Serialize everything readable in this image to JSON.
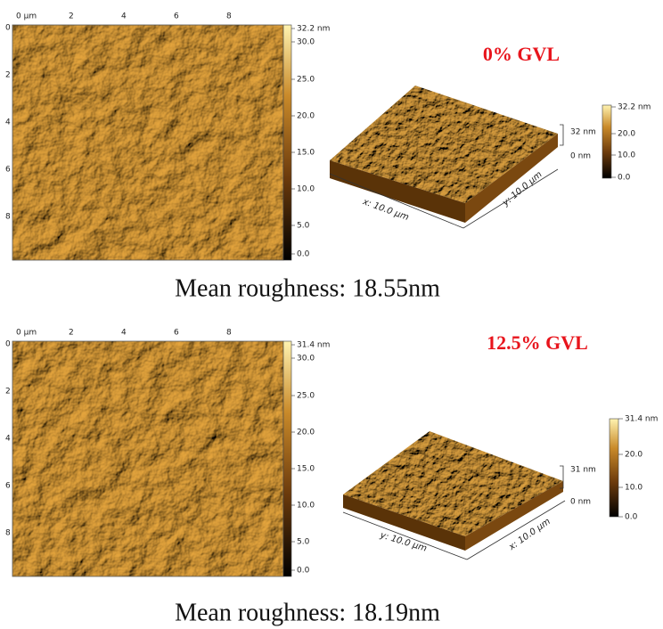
{
  "panels": [
    {
      "label": "0% GVL",
      "caption": "Mean roughness: 18.55nm",
      "map": {
        "x_ticks": [
          "0 µm",
          "2",
          "4",
          "6",
          "8"
        ],
        "y_ticks": [
          "0",
          "2",
          "4",
          "6",
          "8"
        ],
        "colorbar_ticks": [
          "32.2 nm",
          "30.0",
          "25.0",
          "20.0",
          "15.0",
          "10.0",
          "5.0",
          "0.0"
        ]
      },
      "view3d": {
        "front_axis": "x: 10.0 µm",
        "side_axis": "y: 10.0 µm",
        "z_top": "32 nm",
        "z_bottom": "0 nm",
        "colorbar_ticks": [
          "32.2 nm",
          "20.0",
          "10.0",
          "0.0"
        ]
      }
    },
    {
      "label": "12.5% GVL",
      "caption": "Mean roughness: 18.19nm",
      "map": {
        "x_ticks": [
          "0 µm",
          "2",
          "4",
          "6",
          "8"
        ],
        "y_ticks": [
          "0",
          "2",
          "4",
          "6",
          "8"
        ],
        "colorbar_ticks": [
          "31.4 nm",
          "30.0",
          "25.0",
          "20.0",
          "15.0",
          "10.0",
          "5.0",
          "0.0"
        ]
      },
      "view3d": {
        "front_axis": "y: 10.0 µm",
        "side_axis": "x: 10.0 µm",
        "z_top": "31 nm",
        "z_bottom": "0 nm",
        "colorbar_ticks": [
          "31.4 nm",
          "20.0",
          "10.0",
          "0.0"
        ]
      }
    }
  ]
}
